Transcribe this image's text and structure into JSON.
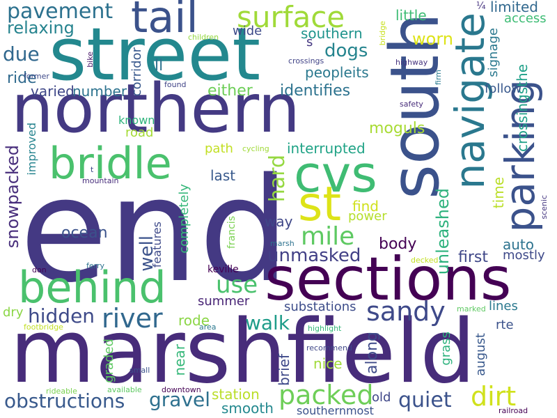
{
  "words": [
    {
      "text": "end",
      "color": "#443983"
    },
    {
      "text": "marshfield",
      "color": "#472c7a"
    },
    {
      "text": "sections",
      "color": "#440154"
    },
    {
      "text": "northern",
      "color": "#443a83"
    },
    {
      "text": "street",
      "color": "#23888e"
    },
    {
      "text": "south",
      "color": "#3b528b"
    },
    {
      "text": "tail",
      "color": "#3b528b"
    },
    {
      "text": "behind",
      "color": "#4ac16d"
    },
    {
      "text": "bridle",
      "color": "#4ac16d"
    },
    {
      "text": "cvs",
      "color": "#3fbc73"
    },
    {
      "text": "st",
      "color": "#dde318"
    },
    {
      "text": "navigate",
      "color": "#2a788e"
    },
    {
      "text": "parking",
      "color": "#3b528b"
    },
    {
      "text": "surface",
      "color": "#a0da39"
    },
    {
      "text": "pavement",
      "color": "#2c718e"
    },
    {
      "text": "river",
      "color": "#31688e"
    },
    {
      "text": "dirt",
      "color": "#d0e11c"
    },
    {
      "text": "packed",
      "color": "#6ece58"
    },
    {
      "text": "sandy",
      "color": "#3e4989"
    },
    {
      "text": "mile",
      "color": "#5ec962"
    },
    {
      "text": "hard",
      "color": "#95d840"
    },
    {
      "text": "unleashed",
      "color": "#2db27d"
    },
    {
      "text": "unmasked",
      "color": "#424086"
    },
    {
      "text": "walk",
      "color": "#1e9c89"
    },
    {
      "text": "use",
      "color": "#4ac16d"
    },
    {
      "text": "gravel",
      "color": "#2d708e"
    },
    {
      "text": "hidden",
      "color": "#3e4a89"
    },
    {
      "text": "obstructions",
      "color": "#38598c"
    },
    {
      "text": "quiet",
      "color": "#3b528b"
    },
    {
      "text": "dogs",
      "color": "#25848e"
    },
    {
      "text": "relaxing",
      "color": "#25838e"
    },
    {
      "text": "identifies",
      "color": "#2c728e"
    },
    {
      "text": "either",
      "color": "#6ece58"
    },
    {
      "text": "number",
      "color": "#2c728e"
    },
    {
      "text": "varied",
      "color": "#3f4788"
    },
    {
      "text": "ride",
      "color": "#306a8e"
    },
    {
      "text": "due",
      "color": "#31688e"
    },
    {
      "text": "snowpacked",
      "color": "#472d7b"
    },
    {
      "text": "interrupted",
      "color": "#20a386"
    },
    {
      "text": "peopleits",
      "color": "#2a788e"
    },
    {
      "text": "southern",
      "color": "#1f948c"
    },
    {
      "text": "little",
      "color": "#3dbc74"
    },
    {
      "text": "worn",
      "color": "#dde318"
    },
    {
      "text": "limited",
      "color": "#31688e"
    },
    {
      "text": "access",
      "color": "#3dbc74"
    },
    {
      "text": "signage",
      "color": "#2a788e"
    },
    {
      "text": "crossingsthe",
      "color": "#1fa088"
    },
    {
      "text": "follow",
      "color": "#38588c"
    },
    {
      "text": "moguls",
      "color": "#a8db34"
    },
    {
      "text": "ocean",
      "color": "#3b528b"
    },
    {
      "text": "well",
      "color": "#3b528b"
    },
    {
      "text": "way",
      "color": "#3f4788"
    },
    {
      "text": "find",
      "color": "#d0e11c"
    },
    {
      "text": "power",
      "color": "#b5de2b"
    },
    {
      "text": "body",
      "color": "#440154"
    },
    {
      "text": "last",
      "color": "#38598c"
    },
    {
      "text": "path",
      "color": "#c2df23"
    },
    {
      "text": "first",
      "color": "#3f4788"
    },
    {
      "text": "auto",
      "color": "#2c728e"
    },
    {
      "text": "mostly",
      "color": "#3e4989"
    },
    {
      "text": "time",
      "color": "#bade28"
    },
    {
      "text": "summer",
      "color": "#482475"
    },
    {
      "text": "rode",
      "color": "#8bd646"
    },
    {
      "text": "lines",
      "color": "#2a788e"
    },
    {
      "text": "substations",
      "color": "#3d4d8a"
    },
    {
      "text": "along",
      "color": "#3e4a89"
    },
    {
      "text": "brief",
      "color": "#3e4989"
    },
    {
      "text": "nice",
      "color": "#a0da39"
    },
    {
      "text": "august",
      "color": "#38588c"
    },
    {
      "text": "grass",
      "color": "#2db27d"
    },
    {
      "text": "rte",
      "color": "#3b528b"
    },
    {
      "text": "near",
      "color": "#35b779"
    },
    {
      "text": "graded",
      "color": "#5ec962"
    },
    {
      "text": "station",
      "color": "#bade28"
    },
    {
      "text": "smooth",
      "color": "#23888e"
    },
    {
      "text": "southernmost",
      "color": "#3b528b"
    },
    {
      "text": "old",
      "color": "#3f4788"
    },
    {
      "text": "keville",
      "color": "#440154"
    },
    {
      "text": "features",
      "color": "#3e4a89"
    },
    {
      "text": "completely",
      "color": "#35b779"
    },
    {
      "text": "francis",
      "color": "#7ad151"
    },
    {
      "text": "improved",
      "color": "#25838e"
    },
    {
      "text": "wide",
      "color": "#3e4a89"
    },
    {
      "text": "road",
      "color": "#a5db36"
    },
    {
      "text": "known",
      "color": "#2fb47c"
    },
    {
      "text": "corridor",
      "color": "#38588c"
    },
    {
      "text": "ll",
      "color": "#2c728e"
    },
    {
      "text": "s",
      "color": "#453781"
    },
    {
      "text": "dry",
      "color": "#8bd646"
    },
    {
      "text": "¼",
      "color": "#46337f"
    },
    {
      "text": "children",
      "color": "#95d840"
    },
    {
      "text": "bridge",
      "color": "#c8e020"
    },
    {
      "text": "crossings",
      "color": "#414487"
    },
    {
      "text": "highway",
      "color": "#46337f"
    },
    {
      "text": "firm",
      "color": "#297b8e"
    },
    {
      "text": "bike",
      "color": "#481769"
    },
    {
      "text": "former",
      "color": "#3e4989"
    },
    {
      "text": "found",
      "color": "#414487"
    },
    {
      "text": "safety",
      "color": "#472c7a"
    },
    {
      "text": "cycling",
      "color": "#a0da39"
    },
    {
      "text": "t",
      "color": "#3e4989"
    },
    {
      "text": "mountain",
      "color": "#472d7b"
    },
    {
      "text": "scenic",
      "color": "#453781"
    },
    {
      "text": "marsh",
      "color": "#2c718e"
    },
    {
      "text": "decked",
      "color": "#c2df23"
    },
    {
      "text": "don",
      "color": "#440154"
    },
    {
      "text": "ferry",
      "color": "#2c718e"
    },
    {
      "text": "footbridge",
      "color": "#c2df23"
    },
    {
      "text": "area",
      "color": "#2a788e"
    },
    {
      "text": "highlight",
      "color": "#35b779"
    },
    {
      "text": "marked",
      "color": "#5ec962"
    },
    {
      "text": "recommend",
      "color": "#3f4788"
    },
    {
      "text": "small",
      "color": "#3b528b"
    },
    {
      "text": "rideable",
      "color": "#7ad151"
    },
    {
      "text": "available",
      "color": "#5ec962"
    },
    {
      "text": "downtown",
      "color": "#440154"
    },
    {
      "text": "railroad",
      "color": "#440154"
    }
  ]
}
